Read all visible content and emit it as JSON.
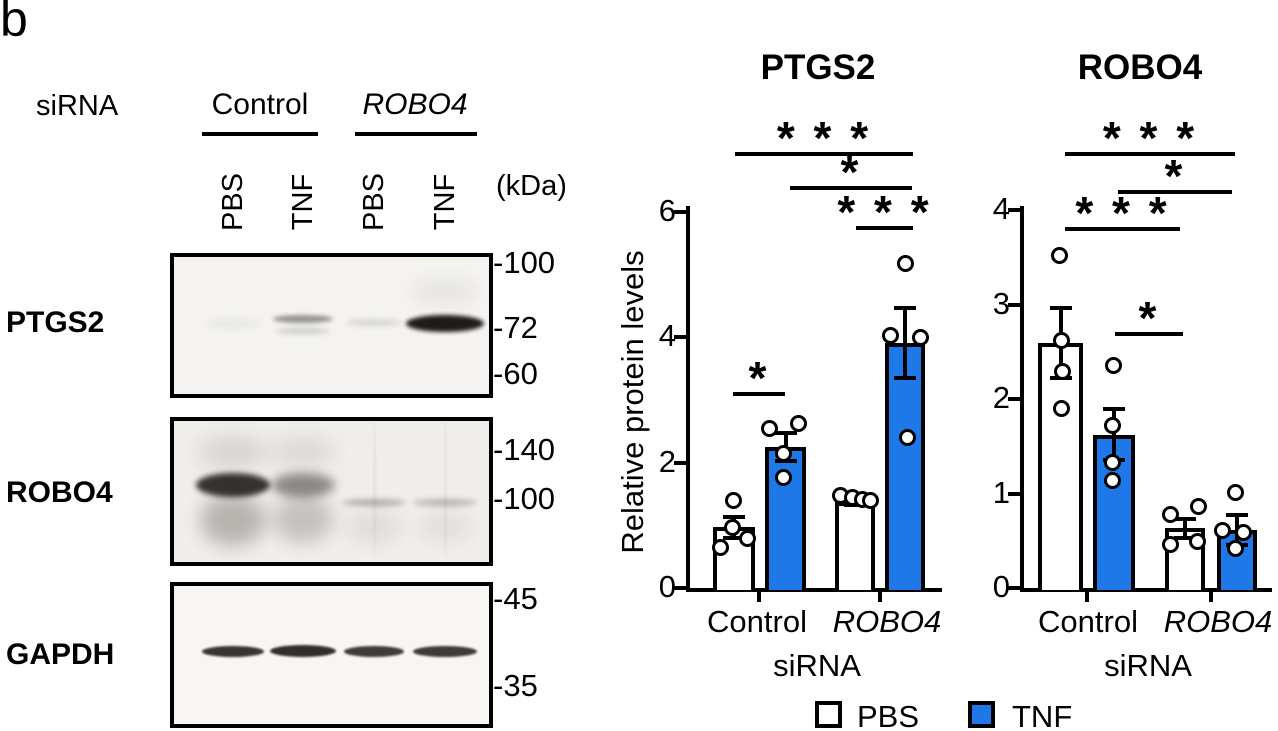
{
  "panel_label": "b",
  "accent_blue": "#1e78e8",
  "blot": {
    "sirna_label": "siRNA",
    "kda_label": "(kDa)",
    "groups": [
      {
        "label": "Control",
        "italic": false
      },
      {
        "label": "ROBO4",
        "italic": true
      }
    ],
    "lanes": [
      "PBS",
      "TNF",
      "PBS",
      "TNF"
    ],
    "rows": [
      {
        "label": "PTGS2",
        "markers": [
          "-100",
          "-72",
          "-60"
        ]
      },
      {
        "label": "ROBO4",
        "markers": [
          "-140",
          "-100"
        ]
      },
      {
        "label": "GAPDH",
        "markers": [
          "-45",
          "-35"
        ]
      }
    ]
  },
  "chart_data": [
    {
      "type": "bar",
      "title": "PTGS2",
      "ylabel": "Relative protein levels",
      "ylim": [
        0,
        6
      ],
      "yticks": [
        0,
        2,
        4,
        6
      ],
      "grid": false,
      "x_groups": [
        {
          "label": "Control",
          "italic": false
        },
        {
          "label": "ROBO4",
          "italic": true
        }
      ],
      "x_axis_sublabel": "siRNA",
      "bars": [
        {
          "group": "Control",
          "treatment": "PBS",
          "value": 0.97,
          "err": 0.17,
          "points": [
            1.4,
            0.97,
            0.79,
            0.65
          ]
        },
        {
          "group": "Control",
          "treatment": "TNF",
          "value": 2.25,
          "err": 0.22,
          "points": [
            2.63,
            2.55,
            2.15,
            1.77
          ]
        },
        {
          "group": "ROBO4",
          "treatment": "PBS",
          "value": 1.37,
          "err": 0.05,
          "points": [
            1.48,
            1.45,
            1.42,
            1.4
          ]
        },
        {
          "group": "ROBO4",
          "treatment": "TNF",
          "value": 3.91,
          "err": 0.56,
          "points": [
            5.18,
            4.03,
            4.0,
            2.41
          ]
        }
      ],
      "significance": [
        {
          "label": "***",
          "from": 0,
          "to": 3
        },
        {
          "label": "*",
          "from": 1,
          "to": 3
        },
        {
          "label": "***",
          "from": 2,
          "to": 3
        },
        {
          "label": "*",
          "from": 0,
          "to": 1
        }
      ]
    },
    {
      "type": "bar",
      "title": "ROBO4",
      "ylabel": "",
      "ylim": [
        0,
        4
      ],
      "yticks": [
        0,
        1,
        2,
        3,
        4
      ],
      "grid": false,
      "x_groups": [
        {
          "label": "Control",
          "italic": false
        },
        {
          "label": "ROBO4",
          "italic": true
        }
      ],
      "x_axis_sublabel": "siRNA",
      "bars": [
        {
          "group": "Control",
          "treatment": "PBS",
          "value": 2.59,
          "err": 0.37,
          "points": [
            3.52,
            2.62,
            2.3,
            1.9
          ]
        },
        {
          "group": "Control",
          "treatment": "TNF",
          "value": 1.62,
          "err": 0.27,
          "points": [
            2.36,
            1.72,
            1.33,
            1.14
          ]
        },
        {
          "group": "ROBO4",
          "treatment": "PBS",
          "value": 0.63,
          "err": 0.1,
          "points": [
            0.87,
            0.78,
            0.5,
            0.47
          ]
        },
        {
          "group": "ROBO4",
          "treatment": "TNF",
          "value": 0.61,
          "err": 0.16,
          "points": [
            1.02,
            0.61,
            0.59,
            0.42
          ]
        }
      ],
      "significance": [
        {
          "label": "***",
          "from": 0,
          "to": 3
        },
        {
          "label": "*",
          "from": 1,
          "to": 3
        },
        {
          "label": "***",
          "from": 0,
          "to": 2
        },
        {
          "label": "*",
          "from": 1,
          "to": 2
        }
      ]
    }
  ],
  "legend": {
    "items": [
      {
        "label": "PBS",
        "fill": "#ffffff"
      },
      {
        "label": "TNF",
        "fill": "#1e78e8"
      }
    ]
  }
}
